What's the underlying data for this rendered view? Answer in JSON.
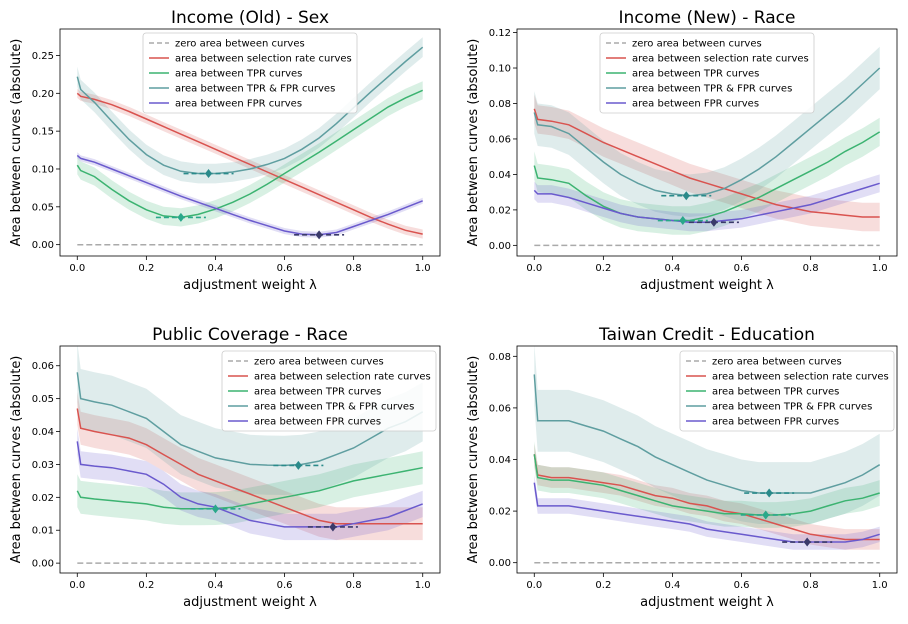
{
  "chart_data": [
    {
      "type": "line",
      "title": "Income (Old) - Sex",
      "xlabel": "adjustment weight λ",
      "ylabel": "Area between curves (absolute)",
      "xlim": [
        -0.05,
        1.05
      ],
      "ylim": [
        -0.015,
        0.285
      ],
      "xticks": [
        "0.0",
        "0.2",
        "0.4",
        "0.6",
        "0.8",
        "1.0"
      ],
      "yticks": [
        "0.00",
        "0.05",
        "0.10",
        "0.15",
        "0.20",
        "0.25"
      ],
      "legend_position": "upper-center",
      "x": [
        0.0,
        0.01,
        0.05,
        0.1,
        0.15,
        0.2,
        0.25,
        0.3,
        0.35,
        0.4,
        0.45,
        0.5,
        0.55,
        0.6,
        0.65,
        0.7,
        0.75,
        0.8,
        0.85,
        0.9,
        0.95,
        1.0
      ],
      "series": [
        {
          "name": "zero area between curves",
          "color": "#aaaaaa",
          "dashed": true,
          "values": [
            0,
            0,
            0,
            0,
            0,
            0,
            0,
            0,
            0,
            0,
            0,
            0,
            0,
            0,
            0,
            0,
            0,
            0,
            0,
            0,
            0,
            0
          ]
        },
        {
          "name": "area between selection rate curves",
          "color": "#d9534f",
          "band": 0.006,
          "values": [
            0.2,
            0.196,
            0.192,
            0.185,
            0.176,
            0.166,
            0.156,
            0.146,
            0.136,
            0.126,
            0.116,
            0.106,
            0.096,
            0.086,
            0.076,
            0.066,
            0.056,
            0.046,
            0.036,
            0.027,
            0.019,
            0.014
          ]
        },
        {
          "name": "area between TPR curves",
          "color": "#3cb371",
          "band": 0.012,
          "values": [
            0.105,
            0.098,
            0.09,
            0.073,
            0.058,
            0.046,
            0.038,
            0.036,
            0.04,
            0.047,
            0.056,
            0.067,
            0.08,
            0.094,
            0.108,
            0.122,
            0.137,
            0.152,
            0.167,
            0.182,
            0.194,
            0.204
          ]
        },
        {
          "name": "area between TPR & FPR curves",
          "color": "#5f9ea0",
          "band": 0.013,
          "values": [
            0.222,
            0.205,
            0.188,
            0.163,
            0.139,
            0.119,
            0.105,
            0.097,
            0.094,
            0.094,
            0.096,
            0.1,
            0.106,
            0.114,
            0.126,
            0.141,
            0.16,
            0.181,
            0.202,
            0.222,
            0.242,
            0.261
          ]
        },
        {
          "name": "area between FPR curves",
          "color": "#6a5acd",
          "band": 0.004,
          "values": [
            0.118,
            0.114,
            0.109,
            0.1,
            0.091,
            0.082,
            0.073,
            0.064,
            0.056,
            0.048,
            0.04,
            0.032,
            0.025,
            0.018,
            0.014,
            0.013,
            0.016,
            0.024,
            0.032,
            0.04,
            0.049,
            0.058
          ]
        }
      ],
      "optima": [
        {
          "series": "area between TPR curves",
          "x": 0.3,
          "y": 0.036,
          "color": "#2aa88a"
        },
        {
          "series": "area between TPR & FPR curves",
          "x": 0.38,
          "y": 0.094,
          "color": "#2a8a8a"
        },
        {
          "series": "area between FPR curves",
          "x": 0.7,
          "y": 0.013,
          "color": "#3a3a6a"
        }
      ]
    },
    {
      "type": "line",
      "title": "Income (New) - Race",
      "xlabel": "adjustment weight λ",
      "ylabel": "Area between curves (absolute)",
      "xlim": [
        -0.05,
        1.05
      ],
      "ylim": [
        -0.006,
        0.122
      ],
      "xticks": [
        "0.0",
        "0.2",
        "0.4",
        "0.6",
        "0.8",
        "1.0"
      ],
      "yticks": [
        "0.00",
        "0.02",
        "0.04",
        "0.06",
        "0.08",
        "0.10",
        "0.12"
      ],
      "legend_position": "upper-center",
      "x": [
        0.0,
        0.01,
        0.05,
        0.1,
        0.15,
        0.2,
        0.25,
        0.3,
        0.35,
        0.4,
        0.45,
        0.5,
        0.55,
        0.6,
        0.65,
        0.7,
        0.75,
        0.8,
        0.85,
        0.9,
        0.95,
        1.0
      ],
      "series": [
        {
          "name": "zero area between curves",
          "color": "#aaaaaa",
          "dashed": true,
          "values": [
            0,
            0,
            0,
            0,
            0,
            0,
            0,
            0,
            0,
            0,
            0,
            0,
            0,
            0,
            0,
            0,
            0,
            0,
            0,
            0,
            0,
            0
          ]
        },
        {
          "name": "area between selection rate curves",
          "color": "#d9534f",
          "band": 0.008,
          "values": [
            0.077,
            0.071,
            0.07,
            0.068,
            0.063,
            0.058,
            0.054,
            0.05,
            0.046,
            0.042,
            0.038,
            0.035,
            0.032,
            0.029,
            0.026,
            0.023,
            0.021,
            0.019,
            0.018,
            0.017,
            0.016,
            0.016
          ]
        },
        {
          "name": "area between TPR curves",
          "color": "#3cb371",
          "band": 0.008,
          "values": [
            0.045,
            0.038,
            0.037,
            0.035,
            0.028,
            0.022,
            0.018,
            0.016,
            0.015,
            0.014,
            0.014,
            0.016,
            0.019,
            0.023,
            0.027,
            0.032,
            0.037,
            0.042,
            0.047,
            0.053,
            0.058,
            0.064
          ]
        },
        {
          "name": "area between TPR & FPR curves",
          "color": "#5f9ea0",
          "band": 0.012,
          "values": [
            0.075,
            0.068,
            0.067,
            0.063,
            0.055,
            0.047,
            0.04,
            0.035,
            0.031,
            0.029,
            0.028,
            0.029,
            0.032,
            0.037,
            0.043,
            0.05,
            0.058,
            0.066,
            0.074,
            0.082,
            0.091,
            0.1
          ]
        },
        {
          "name": "area between FPR curves",
          "color": "#6a5acd",
          "band": 0.005,
          "values": [
            0.031,
            0.029,
            0.029,
            0.027,
            0.024,
            0.021,
            0.018,
            0.016,
            0.015,
            0.014,
            0.013,
            0.013,
            0.014,
            0.015,
            0.017,
            0.019,
            0.021,
            0.023,
            0.026,
            0.029,
            0.032,
            0.035
          ]
        }
      ],
      "optima": [
        {
          "series": "area between TPR curves",
          "x": 0.43,
          "y": 0.014,
          "color": "#2aa88a"
        },
        {
          "series": "area between TPR & FPR curves",
          "x": 0.44,
          "y": 0.028,
          "color": "#2a8a8a"
        },
        {
          "series": "area between FPR curves",
          "x": 0.52,
          "y": 0.013,
          "color": "#3a3a6a"
        }
      ]
    },
    {
      "type": "line",
      "title": "Public Coverage - Race",
      "xlabel": "adjustment weight λ",
      "ylabel": "Area between curves (absolute)",
      "xlim": [
        -0.05,
        1.05
      ],
      "ylim": [
        -0.003,
        0.066
      ],
      "xticks": [
        "0.0",
        "0.2",
        "0.4",
        "0.6",
        "0.8",
        "1.0"
      ],
      "yticks": [
        "0.00",
        "0.01",
        "0.02",
        "0.03",
        "0.04",
        "0.05",
        "0.06"
      ],
      "legend_position": "upper-right",
      "x": [
        0.0,
        0.01,
        0.05,
        0.1,
        0.15,
        0.2,
        0.25,
        0.3,
        0.35,
        0.4,
        0.45,
        0.5,
        0.55,
        0.6,
        0.65,
        0.7,
        0.75,
        0.8,
        0.85,
        0.9,
        0.95,
        1.0
      ],
      "series": [
        {
          "name": "zero area between curves",
          "color": "#aaaaaa",
          "dashed": true,
          "values": [
            0,
            0,
            0,
            0,
            0,
            0,
            0,
            0,
            0,
            0,
            0,
            0,
            0,
            0,
            0,
            0,
            0,
            0,
            0,
            0,
            0,
            0
          ]
        },
        {
          "name": "area between selection rate curves",
          "color": "#d9534f",
          "band": 0.005,
          "values": [
            0.047,
            0.041,
            0.04,
            0.039,
            0.038,
            0.036,
            0.033,
            0.03,
            0.027,
            0.025,
            0.023,
            0.021,
            0.019,
            0.017,
            0.015,
            0.013,
            0.012,
            0.012,
            0.012,
            0.012,
            0.012,
            0.012
          ]
        },
        {
          "name": "area between TPR curves",
          "color": "#3cb371",
          "band": 0.005,
          "values": [
            0.022,
            0.02,
            0.0195,
            0.019,
            0.0185,
            0.018,
            0.017,
            0.0165,
            0.0165,
            0.0166,
            0.017,
            0.018,
            0.019,
            0.02,
            0.021,
            0.022,
            0.0235,
            0.025,
            0.026,
            0.027,
            0.028,
            0.029
          ]
        },
        {
          "name": "area between TPR & FPR curves",
          "color": "#5f9ea0",
          "band": 0.009,
          "values": [
            0.058,
            0.05,
            0.049,
            0.048,
            0.046,
            0.044,
            0.04,
            0.036,
            0.034,
            0.032,
            0.031,
            0.03,
            0.0298,
            0.0297,
            0.03,
            0.031,
            0.033,
            0.035,
            0.038,
            0.041,
            0.043,
            0.046
          ]
        },
        {
          "name": "area between FPR curves",
          "color": "#6a5acd",
          "band": 0.004,
          "values": [
            0.037,
            0.03,
            0.0295,
            0.029,
            0.028,
            0.027,
            0.024,
            0.02,
            0.018,
            0.017,
            0.015,
            0.013,
            0.012,
            0.011,
            0.011,
            0.011,
            0.011,
            0.012,
            0.013,
            0.014,
            0.016,
            0.018
          ]
        }
      ],
      "optima": [
        {
          "series": "area between TPR curves",
          "x": 0.4,
          "y": 0.0165,
          "color": "#2aa88a"
        },
        {
          "series": "area between TPR & FPR curves",
          "x": 0.64,
          "y": 0.0297,
          "color": "#2a8a8a"
        },
        {
          "series": "area between FPR curves",
          "x": 0.74,
          "y": 0.011,
          "color": "#3a3a6a"
        }
      ]
    },
    {
      "type": "line",
      "title": "Taiwan Credit - Education",
      "xlabel": "adjustment weight λ",
      "ylabel": "Area between curves (absolute)",
      "xlim": [
        -0.05,
        1.05
      ],
      "ylim": [
        -0.004,
        0.084
      ],
      "xticks": [
        "0.0",
        "0.2",
        "0.4",
        "0.6",
        "0.8",
        "1.0"
      ],
      "yticks": [
        "0.00",
        "0.02",
        "0.04",
        "0.06",
        "0.08"
      ],
      "legend_position": "upper-right",
      "x": [
        0.0,
        0.01,
        0.05,
        0.1,
        0.15,
        0.2,
        0.25,
        0.3,
        0.35,
        0.4,
        0.45,
        0.5,
        0.55,
        0.6,
        0.65,
        0.7,
        0.75,
        0.8,
        0.85,
        0.9,
        0.95,
        1.0
      ],
      "series": [
        {
          "name": "zero area between curves",
          "color": "#aaaaaa",
          "dashed": true,
          "values": [
            0,
            0,
            0,
            0,
            0,
            0,
            0,
            0,
            0,
            0,
            0,
            0,
            0,
            0,
            0,
            0,
            0,
            0,
            0,
            0,
            0,
            0
          ]
        },
        {
          "name": "area between selection rate curves",
          "color": "#d9534f",
          "band": 0.004,
          "values": [
            0.042,
            0.034,
            0.033,
            0.033,
            0.032,
            0.031,
            0.03,
            0.028,
            0.026,
            0.025,
            0.023,
            0.022,
            0.02,
            0.019,
            0.017,
            0.015,
            0.013,
            0.011,
            0.01,
            0.009,
            0.009,
            0.009
          ]
        },
        {
          "name": "area between TPR curves",
          "color": "#3cb371",
          "band": 0.005,
          "values": [
            0.042,
            0.033,
            0.032,
            0.032,
            0.031,
            0.03,
            0.028,
            0.026,
            0.024,
            0.022,
            0.021,
            0.02,
            0.019,
            0.019,
            0.0185,
            0.0185,
            0.019,
            0.02,
            0.022,
            0.024,
            0.025,
            0.027
          ]
        },
        {
          "name": "area between TPR & FPR curves",
          "color": "#5f9ea0",
          "band": 0.012,
          "values": [
            0.073,
            0.055,
            0.055,
            0.055,
            0.053,
            0.051,
            0.048,
            0.045,
            0.041,
            0.038,
            0.035,
            0.032,
            0.03,
            0.028,
            0.027,
            0.027,
            0.027,
            0.027,
            0.029,
            0.031,
            0.034,
            0.038
          ]
        },
        {
          "name": "area between FPR curves",
          "color": "#6a5acd",
          "band": 0.003,
          "values": [
            0.031,
            0.022,
            0.022,
            0.022,
            0.021,
            0.02,
            0.019,
            0.018,
            0.017,
            0.016,
            0.015,
            0.013,
            0.012,
            0.011,
            0.01,
            0.009,
            0.008,
            0.008,
            0.008,
            0.008,
            0.009,
            0.011
          ]
        }
      ],
      "optima": [
        {
          "series": "area between TPR curves",
          "x": 0.67,
          "y": 0.0185,
          "color": "#2aa88a"
        },
        {
          "series": "area between TPR & FPR curves",
          "x": 0.68,
          "y": 0.027,
          "color": "#2a8a8a"
        },
        {
          "series": "area between FPR curves",
          "x": 0.79,
          "y": 0.008,
          "color": "#3a3a6a"
        }
      ]
    }
  ]
}
